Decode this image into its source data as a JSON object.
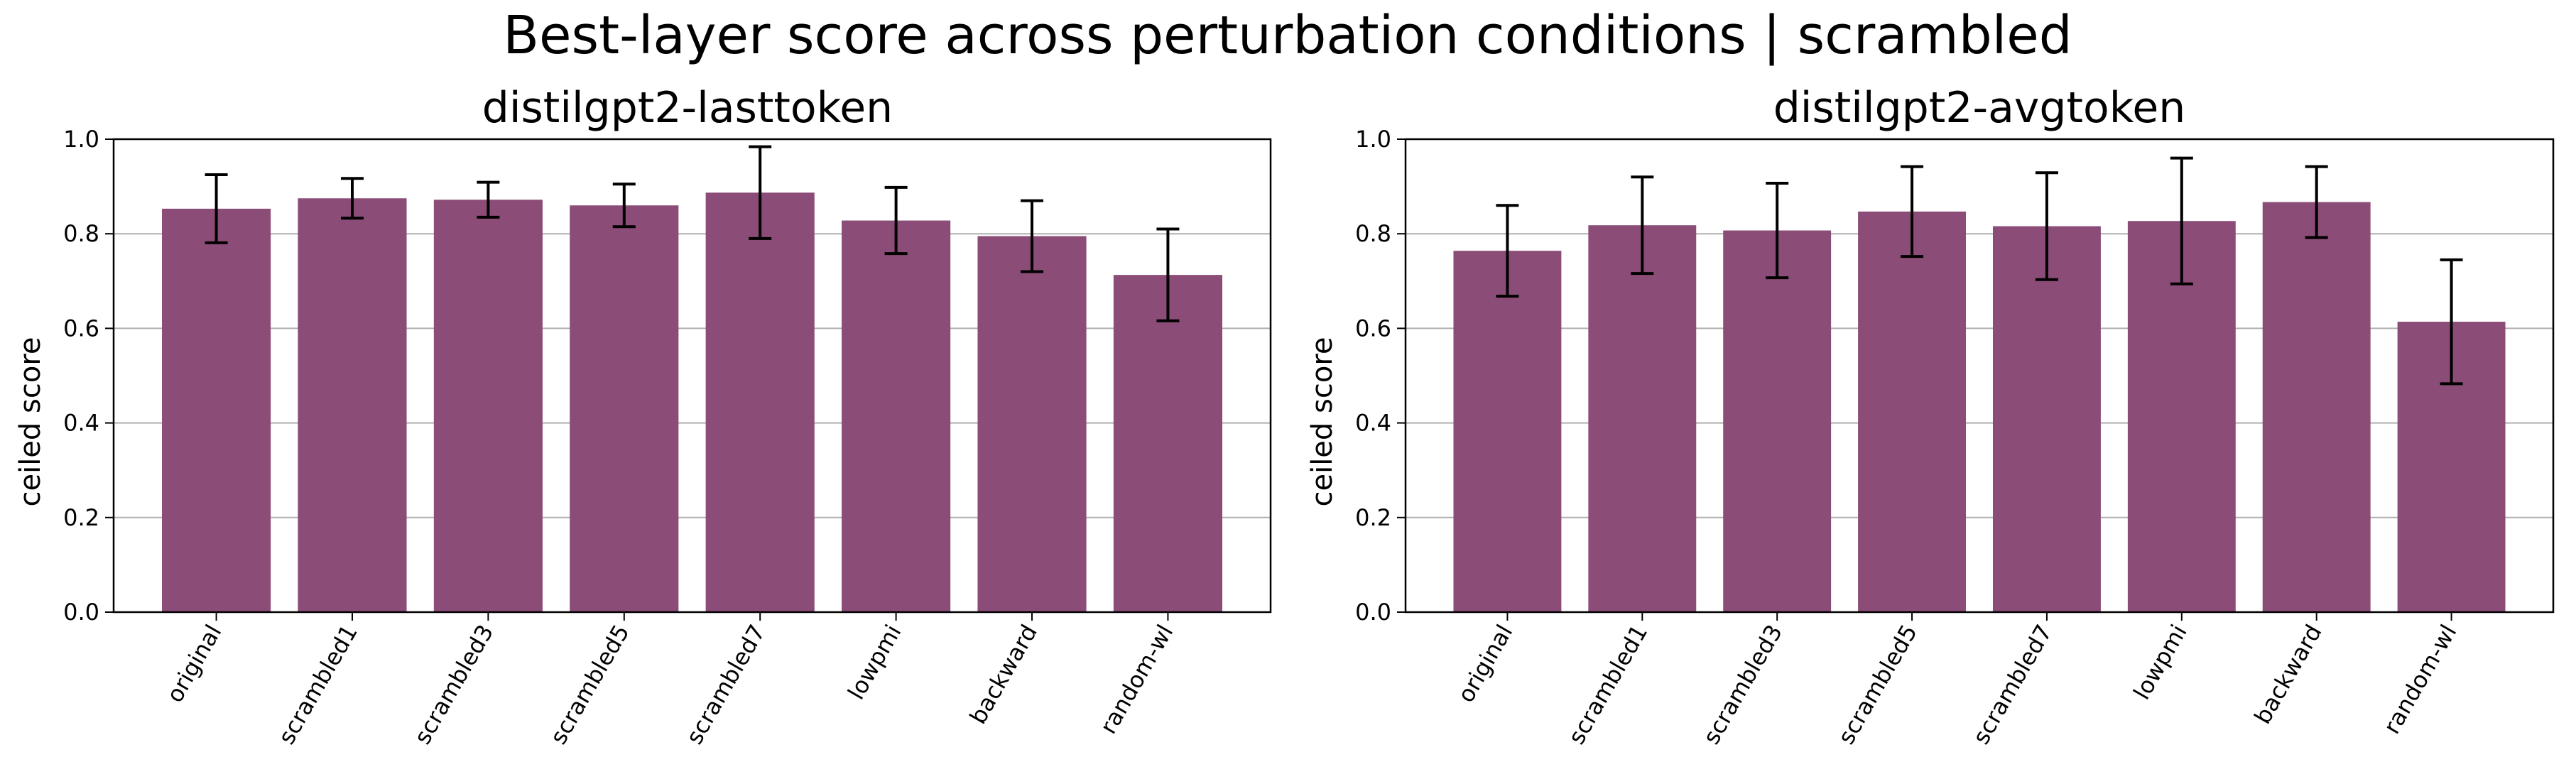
{
  "figure": {
    "title": "Best-layer score across perturbation conditions | scrambled",
    "bar_color": "#8b4c77",
    "grid_color": "#b0b0b0"
  },
  "chart_data": [
    {
      "type": "bar",
      "title": "distilgpt2-lasttoken",
      "ylabel": "ceiled score",
      "ylim": [
        0,
        1.0
      ],
      "yticks": [
        "0.0",
        "0.2",
        "0.4",
        "0.6",
        "0.8",
        "1.0"
      ],
      "grid": "horizontal",
      "categories": [
        "original",
        "scrambled1",
        "scrambled3",
        "scrambled5",
        "scrambled7",
        "lowpmi",
        "backward",
        "random-wl"
      ],
      "values": [
        0.853,
        0.875,
        0.872,
        0.86,
        0.887,
        0.828,
        0.795,
        0.713
      ],
      "errors": [
        0.072,
        0.042,
        0.037,
        0.045,
        0.097,
        0.07,
        0.075,
        0.097
      ]
    },
    {
      "type": "bar",
      "title": "distilgpt2-avgtoken",
      "ylabel": "ceiled score",
      "ylim": [
        0,
        1.0
      ],
      "yticks": [
        "0.0",
        "0.2",
        "0.4",
        "0.6",
        "0.8",
        "1.0"
      ],
      "grid": "horizontal",
      "categories": [
        "original",
        "scrambled1",
        "scrambled3",
        "scrambled5",
        "scrambled7",
        "lowpmi",
        "backward",
        "random-wl"
      ],
      "values": [
        0.764,
        0.818,
        0.807,
        0.847,
        0.816,
        0.827,
        0.867,
        0.614
      ],
      "errors": [
        0.096,
        0.102,
        0.1,
        0.095,
        0.113,
        0.133,
        0.075,
        0.131
      ]
    }
  ]
}
